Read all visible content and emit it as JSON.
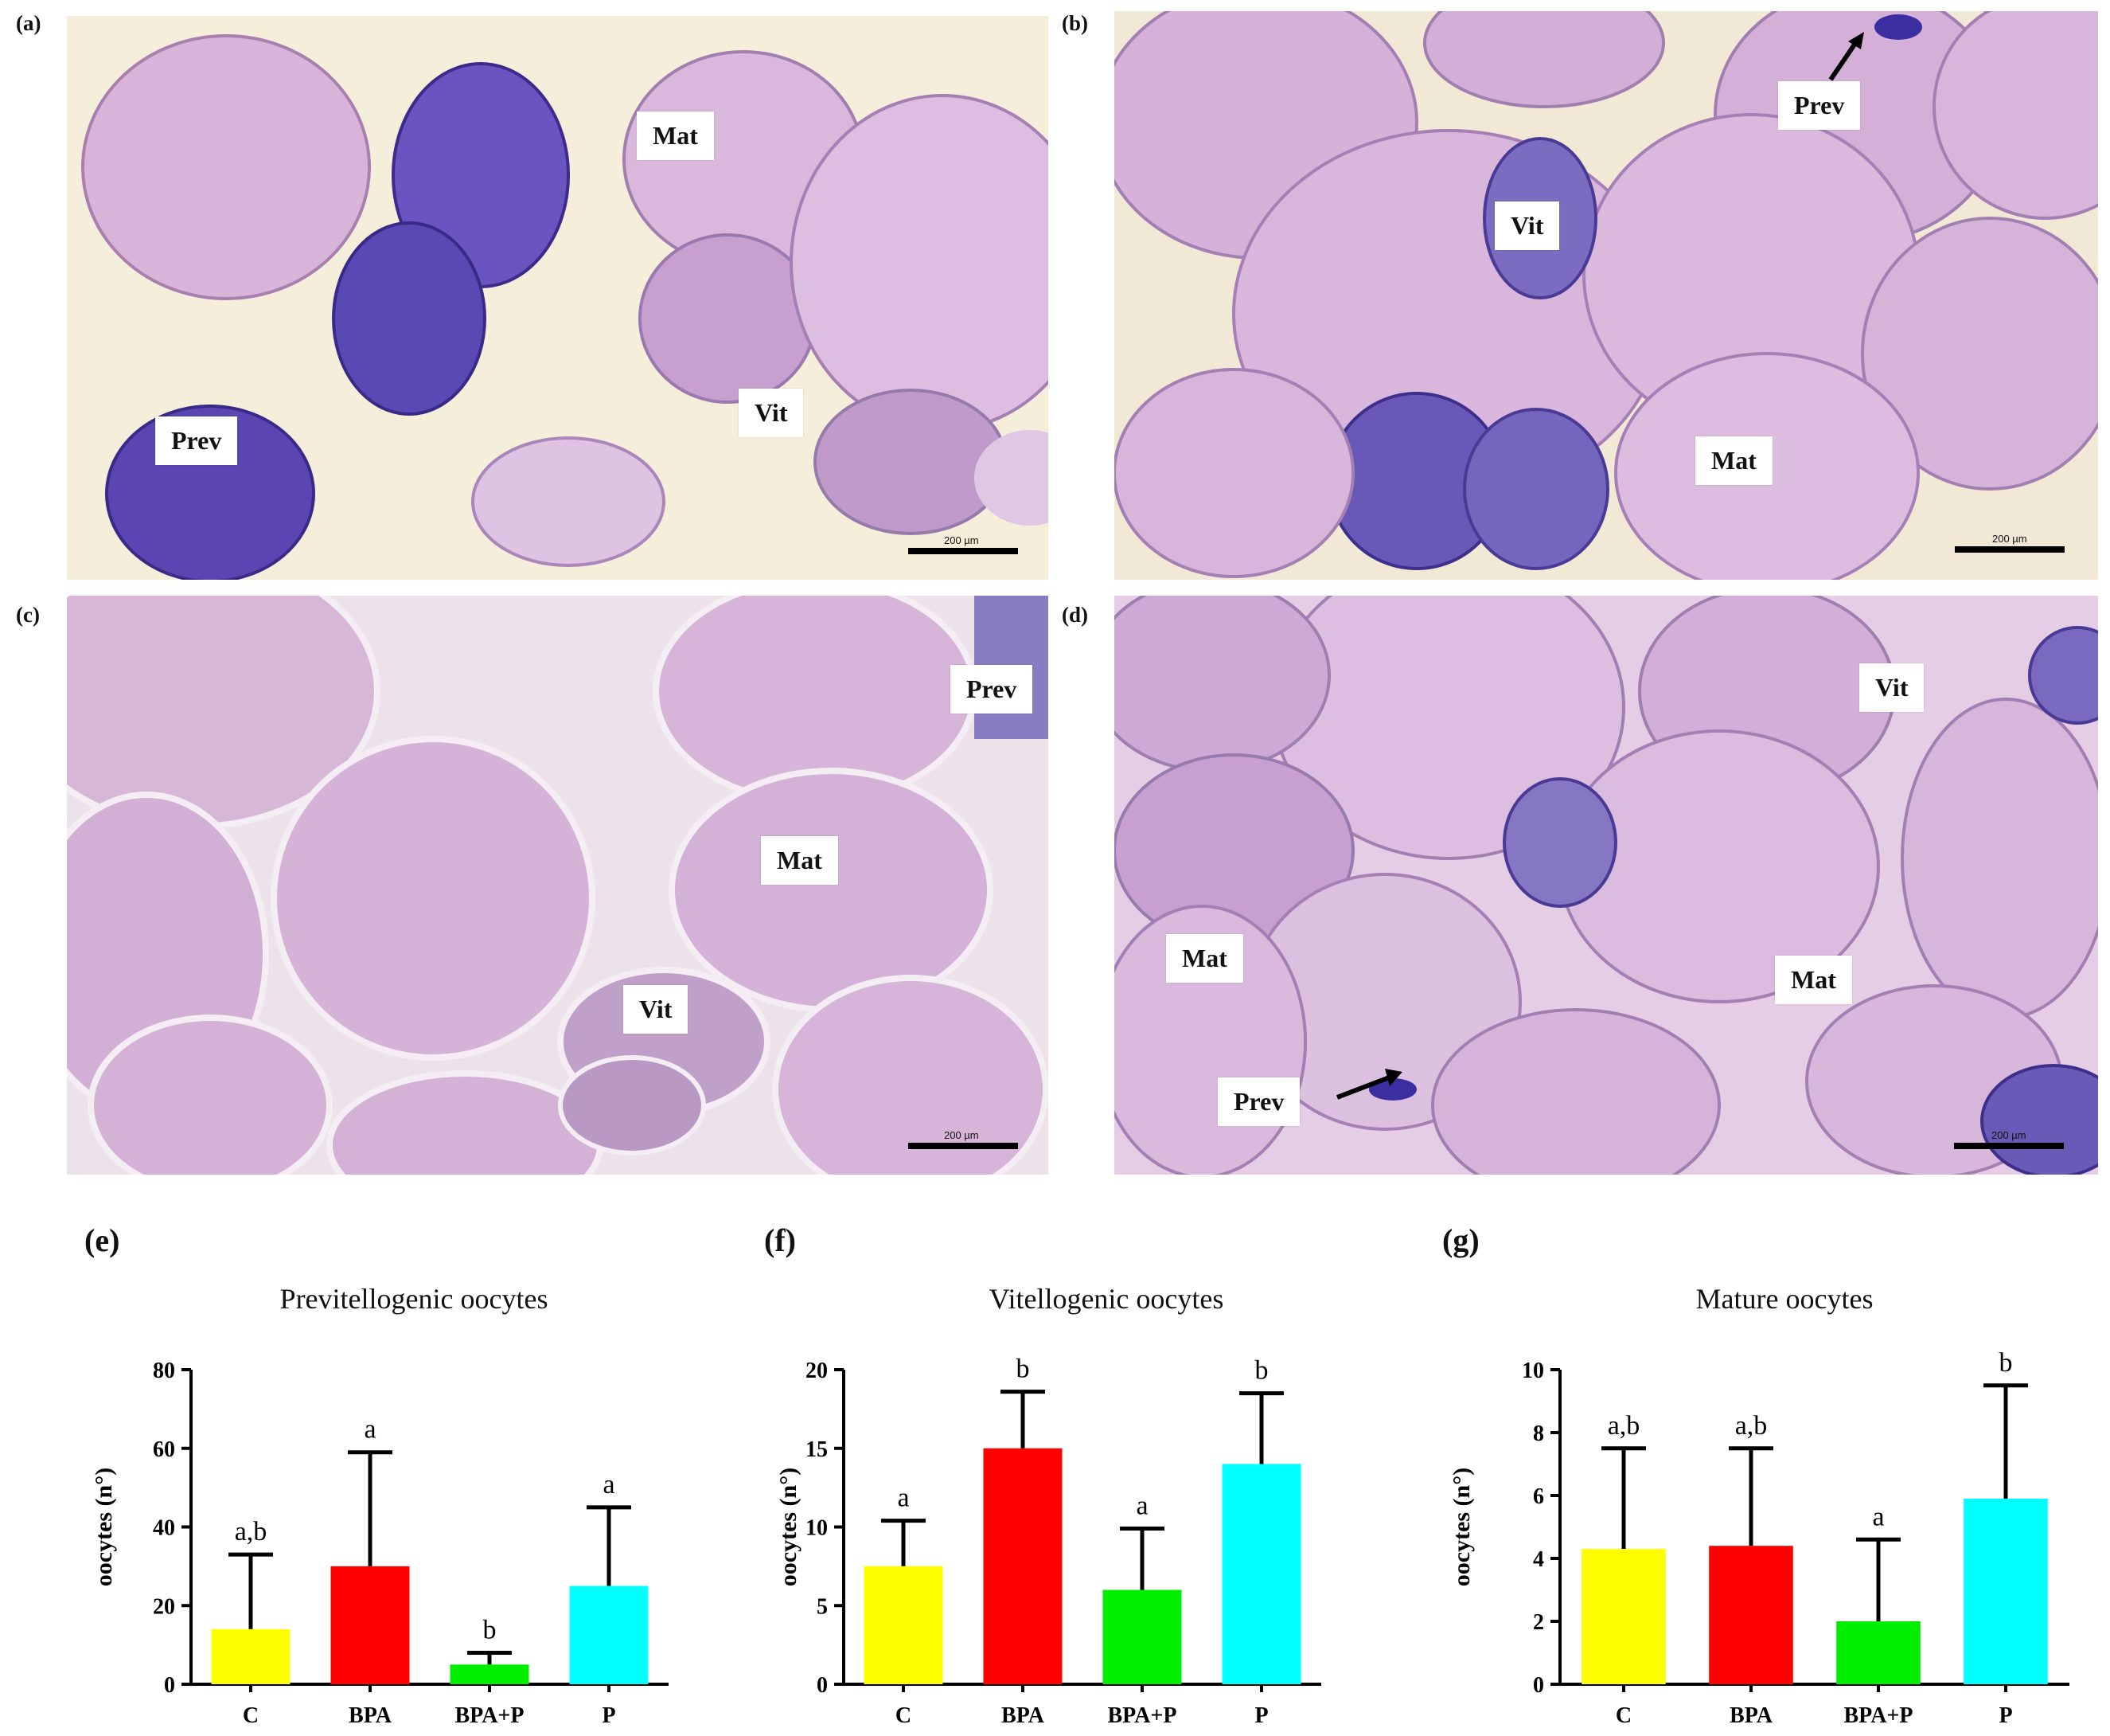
{
  "panels": {
    "a": {
      "label": "(a)",
      "tags": [
        "Mat",
        "Prev",
        "Vit"
      ],
      "scale": "200 µm"
    },
    "b": {
      "label": "(b)",
      "tags": [
        "Prev",
        "Vit",
        "Mat"
      ],
      "scale": "200 µm"
    },
    "c": {
      "label": "(c)",
      "tags": [
        "Prev",
        "Mat",
        "Vit"
      ],
      "scale": "200 µm"
    },
    "d": {
      "label": "(d)",
      "tags": [
        "Vit",
        "Mat",
        "Mat",
        "Prev"
      ],
      "scale": "200 µm"
    }
  },
  "colors": {
    "C": "#ffff00",
    "BPA": "#ff0000",
    "BPA+P": "#00ee00",
    "P": "#00ffff",
    "stain_bg": "#d9b3d9",
    "stain_dark": "#5a3ea8"
  },
  "chart_data": [
    {
      "panel_label": "(e)",
      "type": "bar",
      "title": "Previtellogenic oocytes",
      "ylabel": "oocytes (n°)",
      "xlabel": "",
      "categories": [
        "C",
        "BPA",
        "BPA+P",
        "P"
      ],
      "values": [
        14,
        30,
        5,
        25
      ],
      "error_upper": [
        33,
        59,
        8,
        45
      ],
      "letters": [
        "a,b",
        "a",
        "b",
        "a"
      ],
      "ylim": [
        0,
        80
      ],
      "yticks": [
        0,
        20,
        40,
        60,
        80
      ],
      "grid": false
    },
    {
      "panel_label": "(f)",
      "type": "bar",
      "title": "Vitellogenic oocytes",
      "ylabel": "oocytes (n°)",
      "xlabel": "",
      "categories": [
        "C",
        "BPA",
        "BPA+P",
        "P"
      ],
      "values": [
        7.5,
        15,
        6,
        14
      ],
      "error_upper": [
        10.4,
        18.6,
        9.9,
        18.5
      ],
      "letters": [
        "a",
        "b",
        "a",
        "b"
      ],
      "ylim": [
        0,
        20
      ],
      "yticks": [
        0,
        5,
        10,
        15,
        20
      ],
      "grid": false
    },
    {
      "panel_label": "(g)",
      "type": "bar",
      "title": "Mature oocytes",
      "ylabel": "oocytes (n°)",
      "xlabel": "",
      "categories": [
        "C",
        "BPA",
        "BPA+P",
        "P"
      ],
      "values": [
        4.3,
        4.4,
        2,
        5.9
      ],
      "error_upper": [
        7.5,
        7.5,
        4.6,
        9.5
      ],
      "letters": [
        "a,b",
        "a,b",
        "a",
        "b"
      ],
      "ylim": [
        0,
        10
      ],
      "yticks": [
        0,
        2,
        4,
        6,
        8,
        10
      ],
      "grid": false
    }
  ]
}
